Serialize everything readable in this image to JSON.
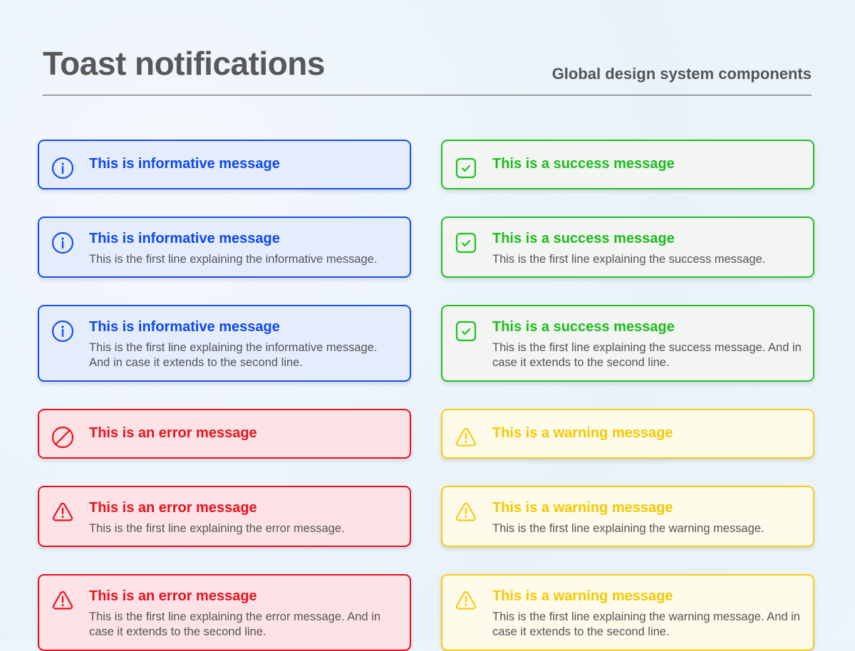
{
  "header": {
    "title": "Toast notifications",
    "subtitle": "Global design system components"
  },
  "colors": {
    "info": {
      "border": "#1450f0",
      "text": "#0d47f0",
      "bg": "#e5edfd"
    },
    "success": {
      "border": "#22c022",
      "text": "#1cbc1c",
      "bg": "#f2f5f2"
    },
    "error": {
      "border": "#e8121e",
      "text": "#e8121e",
      "bg": "#fde3e6"
    },
    "warning": {
      "border": "#f7cc12",
      "text": "#f5c800",
      "bg": "#fffbea"
    }
  },
  "toasts": [
    {
      "type": "info",
      "icon": "info-circle-icon",
      "title": "This is informative message",
      "description": ""
    },
    {
      "type": "success",
      "icon": "check-square-icon",
      "title": "This is a success message",
      "description": ""
    },
    {
      "type": "info",
      "icon": "info-circle-icon",
      "title": "This is informative message",
      "description": "This is the first line explaining the informative message."
    },
    {
      "type": "success",
      "icon": "check-square-icon",
      "title": "This is a success message",
      "description": "This is the first line explaining the success message."
    },
    {
      "type": "info",
      "icon": "info-circle-icon",
      "title": "This is informative message",
      "description": "This is the first line explaining the informative message. And in case it extends to the second line."
    },
    {
      "type": "success",
      "icon": "check-square-icon",
      "title": "This is a success message",
      "description": "This is the first line explaining the success message. And in case it extends to the second line."
    },
    {
      "type": "error",
      "icon": "prohibited-icon",
      "title": "This is an error message",
      "description": ""
    },
    {
      "type": "warning",
      "icon": "warning-triangle-icon",
      "title": "This is a warning message",
      "description": ""
    },
    {
      "type": "error",
      "icon": "warning-triangle-icon",
      "title": "This is an error message",
      "description": "This is the first line explaining the error message."
    },
    {
      "type": "warning",
      "icon": "warning-triangle-icon",
      "title": "This is a warning message",
      "description": "This is the first line explaining the warning message."
    },
    {
      "type": "error",
      "icon": "warning-triangle-icon",
      "title": "This is an error message",
      "description": "This is the first line explaining the error message. And in case it extends to the second line."
    },
    {
      "type": "warning",
      "icon": "warning-triangle-icon",
      "title": "This is a warning message",
      "description": "This is the first line explaining the warning message. And in case it extends to the second line."
    }
  ]
}
